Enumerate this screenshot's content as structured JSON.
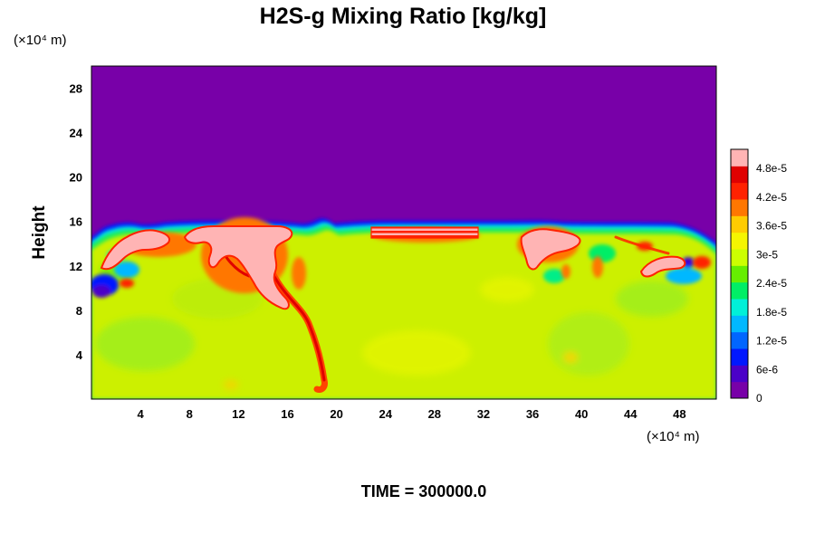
{
  "chart_data": {
    "type": "heatmap",
    "title": "H2S-g Mixing Ratio [kg/kg]",
    "ylabel": "Height",
    "xlabel": "",
    "x_unit_label": "(×10⁴ m)",
    "y_unit_label": "(×10⁴ m)",
    "time_label": "TIME = 300000.0",
    "xlim": [
      0,
      51
    ],
    "ylim": [
      0,
      30
    ],
    "x_ticks": [
      4,
      8,
      12,
      16,
      20,
      24,
      28,
      32,
      36,
      40,
      44,
      48
    ],
    "y_ticks": [
      4,
      8,
      12,
      16,
      20,
      24,
      28
    ],
    "colorbar": {
      "range": [
        0,
        5.2e-05
      ],
      "tick_values": [
        0,
        6e-06,
        1.2e-05,
        1.8e-05,
        2.4e-05,
        3e-05,
        3.6e-05,
        4.2e-05,
        4.8e-05
      ],
      "tick_labels": [
        "0",
        "6e-6",
        "1.2e-5",
        "1.8e-5",
        "2.4e-5",
        "3e-5",
        "3.6e-5",
        "4.2e-5",
        "4.8e-5"
      ],
      "colors": [
        "#7800a8",
        "#4b00c8",
        "#0018ff",
        "#0066ff",
        "#00b8ff",
        "#00f0d8",
        "#00ee66",
        "#66ee00",
        "#ccff00",
        "#f5f500",
        "#ffcc00",
        "#ff7700",
        "#ff2200",
        "#e00000",
        "#ffb4b4"
      ]
    },
    "regions": {
      "upper": {
        "y_range": [
          15.5,
          30
        ],
        "value": 0
      },
      "lower_mean_value": 3.45e-05,
      "plume_top_height": 15.5,
      "saturated_value": 5.2e-05
    },
    "grid": false,
    "legend": "colorbar-right"
  }
}
